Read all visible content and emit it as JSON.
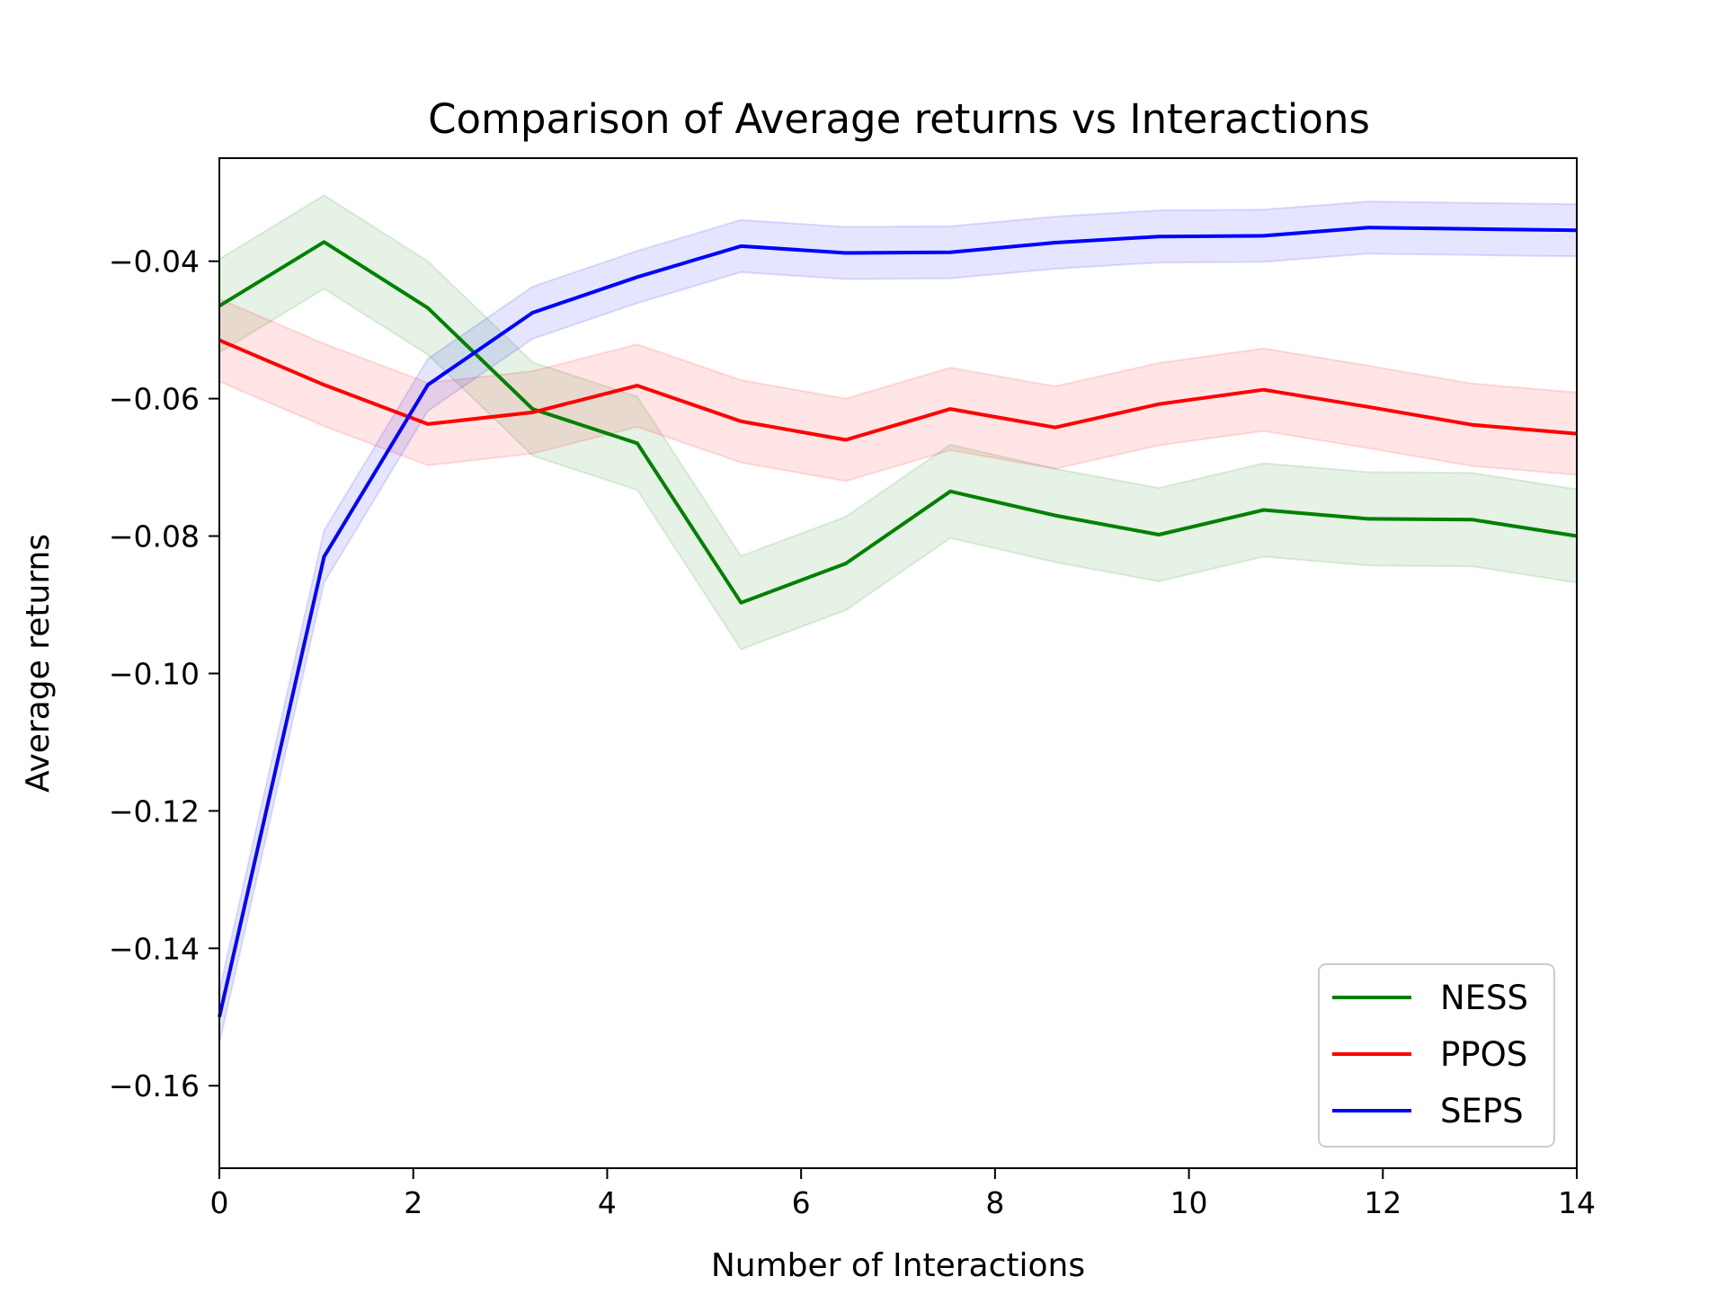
{
  "chart_data": {
    "type": "line",
    "title": "Comparison of Average returns vs Interactions",
    "xlabel": "Number of Interactions",
    "ylabel": "Average returns",
    "xlim": [
      0,
      14
    ],
    "ylim": [
      -0.172,
      -0.025
    ],
    "x_ticks": [
      0,
      2,
      4,
      6,
      8,
      10,
      12,
      14
    ],
    "x_tick_labels": [
      "0",
      "2",
      "4",
      "6",
      "8",
      "10",
      "12",
      "14"
    ],
    "y_ticks": [
      -0.16,
      -0.14,
      -0.12,
      -0.1,
      -0.08,
      -0.06,
      -0.04
    ],
    "y_tick_labels": [
      "−0.16",
      "−0.14",
      "−0.12",
      "−0.10",
      "−0.08",
      "−0.06",
      "−0.04"
    ],
    "grid": false,
    "legend_position": "bottom-right",
    "x": [
      0,
      1.08,
      2.15,
      3.23,
      4.31,
      5.38,
      6.46,
      7.54,
      8.62,
      9.69,
      10.77,
      11.85,
      12.92,
      14
    ],
    "series": [
      {
        "name": "NESS",
        "color": "#008000",
        "values": [
          -0.0465,
          -0.0372,
          -0.0468,
          -0.0615,
          -0.0665,
          -0.0897,
          -0.084,
          -0.0735,
          -0.077,
          -0.0798,
          -0.0762,
          -0.0775,
          -0.0776,
          -0.08
        ],
        "band": 0.0068
      },
      {
        "name": "PPOS",
        "color": "#ff0000",
        "values": [
          -0.0515,
          -0.058,
          -0.0637,
          -0.062,
          -0.0581,
          -0.0633,
          -0.066,
          -0.0615,
          -0.0642,
          -0.0608,
          -0.0587,
          -0.0612,
          -0.0638,
          -0.0651
        ],
        "band": 0.006
      },
      {
        "name": "SEPS",
        "color": "#0000ff",
        "values": [
          -0.15,
          -0.083,
          -0.058,
          -0.0475,
          -0.0423,
          -0.0378,
          -0.0388,
          -0.0387,
          -0.0373,
          -0.0364,
          -0.0363,
          -0.0351,
          -0.0353,
          -0.0355
        ],
        "band": 0.0038
      }
    ]
  }
}
